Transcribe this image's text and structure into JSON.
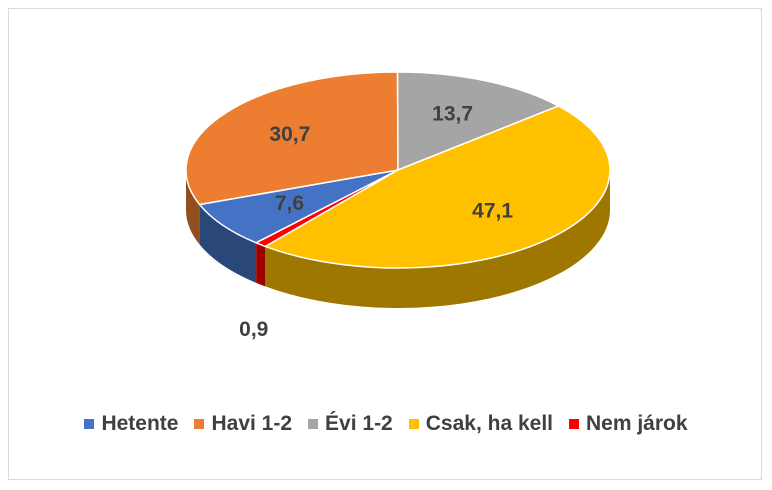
{
  "chart_data": {
    "type": "pie3d",
    "categories": [
      "Hetente",
      "Havi 1-2",
      "Évi 1-2",
      "Csak, ha kell",
      "Nem járok"
    ],
    "values": [
      7.6,
      30.7,
      13.7,
      47.1,
      0.9
    ],
    "value_labels": [
      "7,6",
      "30,7",
      "13,7",
      "47,1",
      "0,9"
    ],
    "colors": [
      "#4472c4",
      "#ed7d31",
      "#a5a5a5",
      "#ffc000",
      "#ff0000"
    ],
    "legend": "bottom"
  }
}
